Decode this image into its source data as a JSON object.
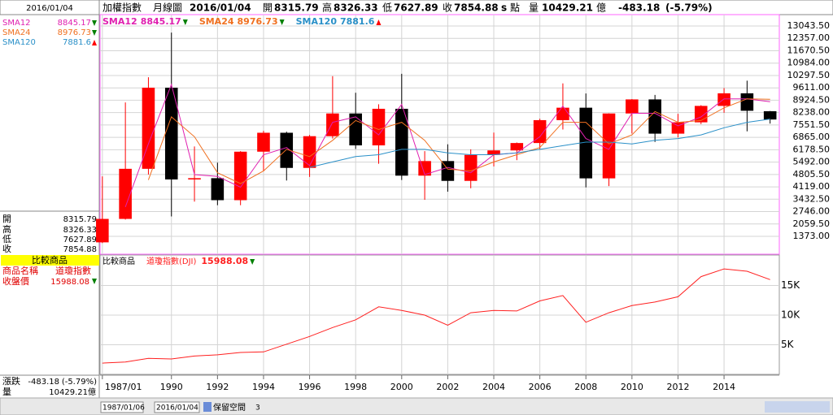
{
  "header": {
    "index_name": "加權指數",
    "period": "月線圖",
    "date": "2016/01/04",
    "open_label": "開",
    "open": 8315.79,
    "high_label": "高",
    "high": 8326.33,
    "low_label": "低",
    "low": 7627.89,
    "close_label": "收",
    "close": 7854.88,
    "close_suffix": "s",
    "unit": "點",
    "volume_label": "量",
    "volume": 10429.21,
    "volume_unit": "億",
    "change": -483.18,
    "change_pct": "(-5.79%)"
  },
  "side_panel": {
    "date": "2016/01/04",
    "compare_title": "比較商品",
    "name_label": "商品名稱",
    "name_value": "道瓊指數",
    "close_label": "收盤價",
    "change_label": "漲跌"
  },
  "footer": {
    "start_date": "1987/01/06",
    "end_date": "2016/01/04",
    "reserve_label": "保留空間",
    "reserve_value": "3"
  },
  "chart_data": [
    {
      "type": "candlestick",
      "x": [
        1987,
        1988,
        1989,
        1990,
        1991,
        1992,
        1993,
        1994,
        1995,
        1996,
        1997,
        1998,
        1999,
        2000,
        2001,
        2002,
        2003,
        2004,
        2005,
        2006,
        2007,
        2008,
        2009,
        2010,
        2011,
        2012,
        2013,
        2014,
        2015,
        2016
      ],
      "open": [
        1040,
        2340,
        5120,
        9620,
        4530,
        4600,
        3380,
        6070,
        7120,
        5170,
        6930,
        8190,
        6420,
        8450,
        4740,
        5550,
        4450,
        5890,
        6140,
        6550,
        7820,
        8510,
        4590,
        8190,
        8970,
        7070,
        7700,
        8610,
        9310,
        8315.79
      ],
      "high": [
        4700,
        8800,
        10200,
        12680,
        6360,
        5460,
        6100,
        7230,
        7180,
        7000,
        10260,
        9340,
        8700,
        10390,
        6100,
        6480,
        6200,
        7130,
        6580,
        7900,
        9860,
        9300,
        8200,
        8990,
        9220,
        8170,
        8650,
        9600,
        10010,
        8326.33
      ],
      "low": [
        1000,
        2300,
        4800,
        2480,
        3300,
        3100,
        3100,
        5000,
        4470,
        4670,
        6800,
        6220,
        5400,
        4500,
        3400,
        3850,
        4040,
        5250,
        5600,
        6200,
        7300,
        4090,
        4160,
        7080,
        6610,
        6860,
        7600,
        8230,
        7200,
        7627.89
      ],
      "close": [
        2340,
        5120,
        9620,
        4530,
        4600,
        3380,
        6070,
        7120,
        5170,
        6930,
        8190,
        6420,
        8450,
        4740,
        5550,
        4450,
        5890,
        6140,
        6550,
        7820,
        8510,
        4590,
        8190,
        8970,
        7070,
        7700,
        8610,
        9310,
        8340,
        7854.88
      ],
      "up_color": "#ff0000",
      "down_color": "#000000",
      "series": [
        {
          "name": "SMA12",
          "color": "#e020b0",
          "values": [
            null,
            3000,
            6500,
            9800,
            4800,
            4700,
            4100,
            5900,
            6300,
            5300,
            7700,
            8000,
            7000,
            8700,
            4800,
            5200,
            4900,
            5900,
            6000,
            6900,
            8600,
            6800,
            6200,
            8200,
            8200,
            7500,
            8000,
            9000,
            9000,
            8845.17
          ]
        },
        {
          "name": "SMA24",
          "color": "#f07020",
          "values": [
            null,
            null,
            4500,
            8000,
            6900,
            4900,
            4300,
            5000,
            6200,
            5800,
            6700,
            7800,
            7300,
            7700,
            6700,
            5100,
            5000,
            5500,
            5900,
            6300,
            7700,
            7700,
            6500,
            7000,
            8300,
            7700,
            7800,
            8500,
            9000,
            8976.73
          ]
        },
        {
          "name": "SMA120",
          "color": "#2a90c8",
          "values": [
            null,
            null,
            null,
            null,
            null,
            null,
            null,
            null,
            null,
            5200,
            5500,
            5800,
            5900,
            6200,
            6200,
            6000,
            5900,
            5900,
            6000,
            6200,
            6400,
            6600,
            6600,
            6500,
            6700,
            6800,
            7000,
            7400,
            7700,
            7881.6
          ]
        }
      ],
      "xlim": [
        1986.9,
        2016.4
      ],
      "xticks": [
        {
          "value": 1987,
          "label": "1987/01"
        },
        1990,
        1992,
        1994,
        1996,
        1998,
        2000,
        2002,
        2004,
        2006,
        2008,
        2010,
        2012,
        2014
      ],
      "ylim": [
        382,
        13675
      ],
      "yticks": [
        {
          "value": 1373,
          "label": "1373.00"
        },
        {
          "value": 2059.5,
          "label": "2059.50"
        },
        {
          "value": 2746,
          "label": "2746.00"
        },
        {
          "value": 3432.5,
          "label": "3432.50"
        },
        {
          "value": 4119,
          "label": "4119.00"
        },
        {
          "value": 4805.5,
          "label": "4805.50"
        },
        {
          "value": 5492,
          "label": "5492.00"
        },
        {
          "value": 6178.5,
          "label": "6178.50"
        },
        {
          "value": 6865,
          "label": "6865.00"
        },
        {
          "value": 7551.5,
          "label": "7551.50"
        },
        {
          "value": 8238,
          "label": "8238.00"
        },
        {
          "value": 8924.5,
          "label": "8924.50"
        },
        {
          "value": 9611,
          "label": "9611.00"
        },
        {
          "value": 10297.5,
          "label": "10297.50"
        },
        {
          "value": 10984,
          "label": "10984.00"
        },
        {
          "value": 11670.5,
          "label": "11670.50"
        },
        {
          "value": 12357,
          "label": "12357.00"
        },
        {
          "value": 13043.5,
          "label": "13043.50"
        }
      ],
      "grid": true
    },
    {
      "type": "line",
      "title": "比較商品",
      "x": [
        1987,
        1988,
        1989,
        1990,
        1991,
        1992,
        1993,
        1994,
        1995,
        1996,
        1997,
        1998,
        1999,
        2000,
        2001,
        2002,
        2003,
        2004,
        2005,
        2006,
        2007,
        2008,
        2009,
        2010,
        2011,
        2012,
        2013,
        2014,
        2015,
        2016
      ],
      "series": [
        {
          "name": "道瓊指數(DJI)",
          "color": "#ff2020",
          "values": [
            1900,
            2100,
            2700,
            2600,
            3100,
            3300,
            3700,
            3800,
            5100,
            6400,
            7900,
            9200,
            11400,
            10800,
            10000,
            8300,
            10400,
            10800,
            10700,
            12400,
            13300,
            8800,
            10400,
            11600,
            12200,
            13100,
            16500,
            17800,
            17400,
            15988.08
          ]
        }
      ],
      "xlim": [
        1986.9,
        2016.4
      ],
      "ylim": [
        0,
        20000
      ],
      "yticks": [
        {
          "value": 5000,
          "label": "5K"
        },
        {
          "value": 10000,
          "label": "10K"
        },
        {
          "value": 15000,
          "label": "15K"
        }
      ],
      "grid": true
    }
  ]
}
